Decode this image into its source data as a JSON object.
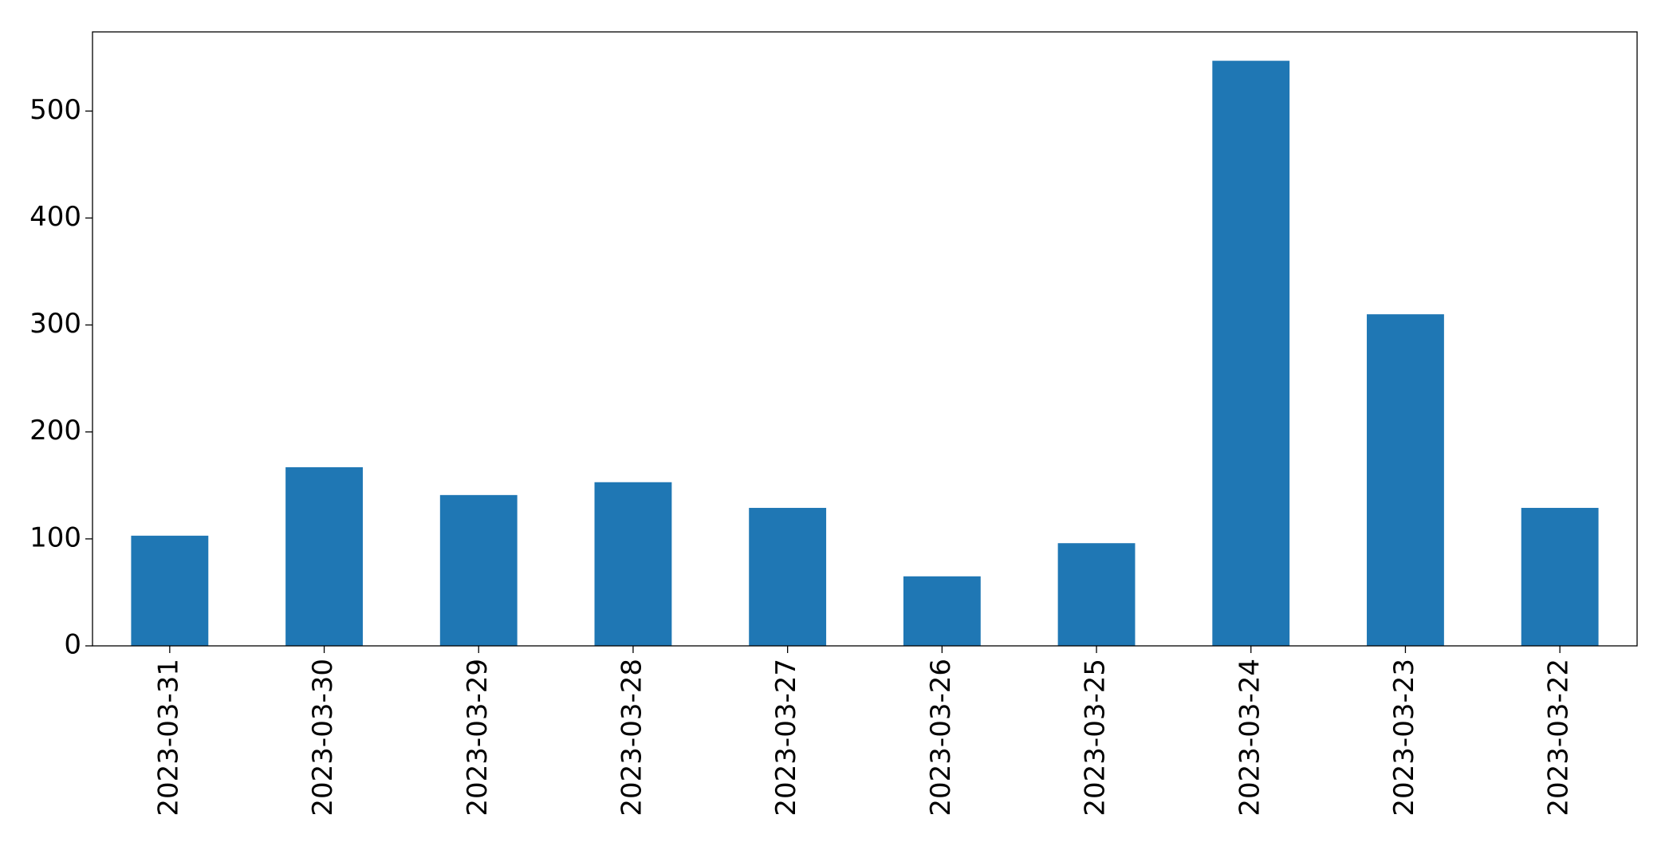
{
  "chart_data": {
    "type": "bar",
    "categories": [
      "2023-03-31",
      "2023-03-30",
      "2023-03-29",
      "2023-03-28",
      "2023-03-27",
      "2023-03-26",
      "2023-03-25",
      "2023-03-24",
      "2023-03-23",
      "2023-03-22"
    ],
    "values": [
      103,
      167,
      141,
      153,
      129,
      65,
      96,
      547,
      310,
      129
    ],
    "color": "#1f77b4",
    "ylim": [
      0,
      574
    ],
    "yticks": [
      0,
      100,
      200,
      300,
      400,
      500
    ],
    "grid": false
  }
}
